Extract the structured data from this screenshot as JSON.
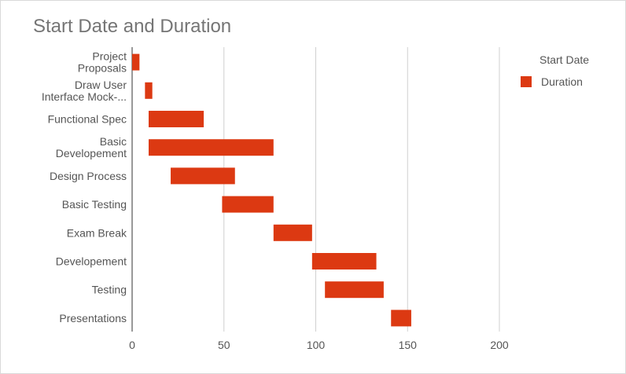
{
  "chart_data": {
    "type": "bar",
    "orientation": "horizontal",
    "stacked": true,
    "title": "Start Date and Duration",
    "xlim": [
      0,
      200
    ],
    "xticks": [
      0,
      50,
      100,
      150,
      200
    ],
    "grid": true,
    "legend_position": "right",
    "categories": [
      [
        "Project",
        "Proposals"
      ],
      [
        "Draw User",
        "Interface Mock-..."
      ],
      [
        "Functional Spec"
      ],
      [
        "Basic",
        "Developement"
      ],
      [
        "Design Process"
      ],
      [
        "Basic Testing"
      ],
      [
        "Exam Break"
      ],
      [
        "Developement"
      ],
      [
        "Testing"
      ],
      [
        "Presentations"
      ]
    ],
    "series": [
      {
        "name": "Start Date",
        "color": "transparent",
        "values": [
          0,
          7,
          9,
          9,
          21,
          49,
          77,
          98,
          105,
          141
        ]
      },
      {
        "name": "Duration",
        "color": "#dc3912",
        "values": [
          4,
          4,
          30,
          68,
          35,
          28,
          21,
          35,
          32,
          11
        ]
      }
    ]
  }
}
